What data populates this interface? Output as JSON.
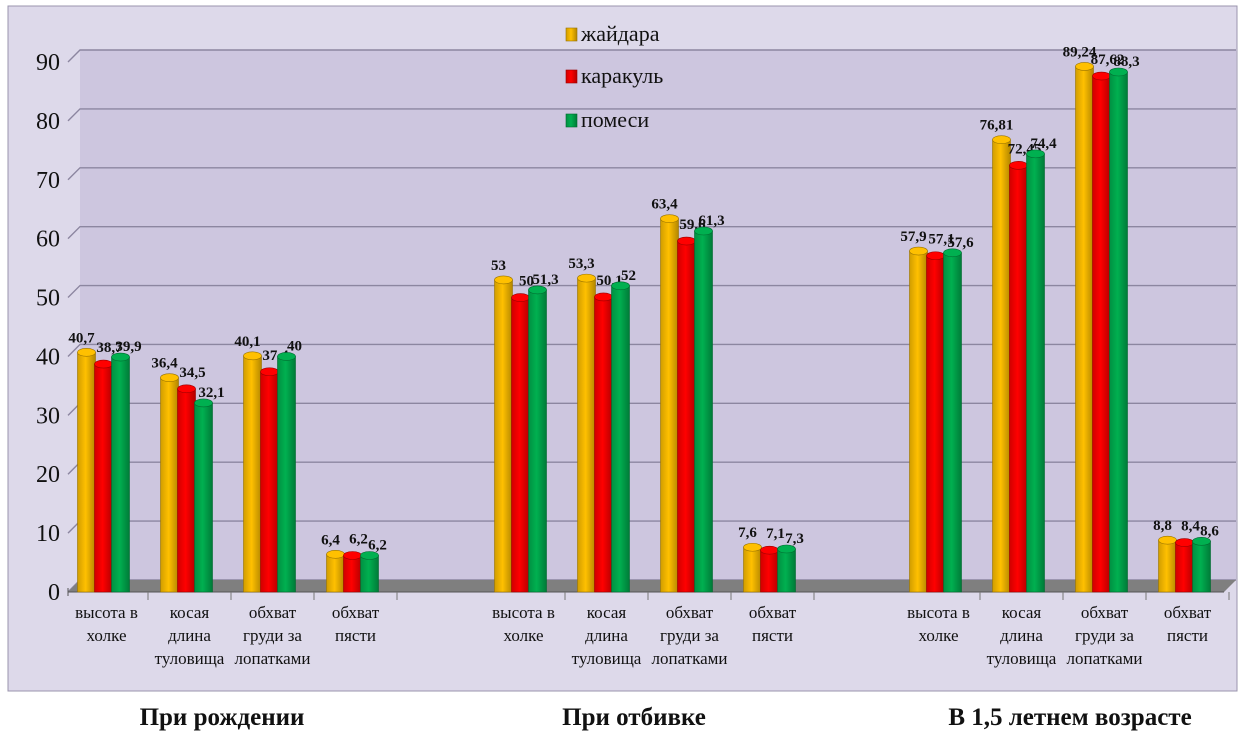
{
  "chart_data": {
    "type": "bar",
    "ylim": [
      0,
      90
    ],
    "yticks": [
      0,
      10,
      20,
      30,
      40,
      50,
      60,
      70,
      80,
      90
    ],
    "grid": true,
    "legend_position": "top-center",
    "series": [
      {
        "name": "жайдара",
        "color": "#ffc000"
      },
      {
        "name": "каракуль",
        "color": "#ff0000"
      },
      {
        "name": "помеси",
        "color": "#00b050"
      }
    ],
    "groups": [
      {
        "title": "При рождении",
        "categories": [
          {
            "label": [
              "высота в",
              "холке"
            ],
            "values": [
              40.7,
              38.7,
              39.9
            ],
            "value_labels": [
              "40,7",
              "38,7",
              "39,9"
            ]
          },
          {
            "label": [
              "косая",
              "длина",
              "туловища"
            ],
            "values": [
              36.4,
              34.5,
              32.1
            ],
            "value_labels": [
              "36,4",
              "34,5",
              "32,1"
            ]
          },
          {
            "label": [
              "обхват",
              "груди за",
              "лопатками"
            ],
            "values": [
              40.1,
              37.4,
              40
            ],
            "value_labels": [
              "40,1",
              "37,4",
              "40"
            ]
          },
          {
            "label": [
              "обхват",
              "пясти"
            ],
            "values": [
              6.4,
              6.2,
              6.2
            ],
            "value_labels": [
              "6,4",
              "6,2",
              "6,2"
            ]
          }
        ]
      },
      {
        "title": "При отбивке",
        "categories": [
          {
            "label": [
              "высота в",
              "холке"
            ],
            "values": [
              53,
              50,
              51.3
            ],
            "value_labels": [
              "53",
              "50",
              "51,3"
            ]
          },
          {
            "label": [
              "косая",
              "длина",
              "туловища"
            ],
            "values": [
              53.3,
              50.1,
              52
            ],
            "value_labels": [
              "53,3",
              "50,1",
              "52"
            ]
          },
          {
            "label": [
              "обхват",
              "груди за",
              "лопатками"
            ],
            "values": [
              63.4,
              59.6,
              61.3
            ],
            "value_labels": [
              "63,4",
              "59,6",
              "61,3"
            ]
          },
          {
            "label": [
              "обхват",
              "пясти"
            ],
            "values": [
              7.6,
              7.1,
              7.3
            ],
            "value_labels": [
              "7,6",
              "7,1",
              "7,3"
            ]
          }
        ]
      },
      {
        "title": "В 1,5 летнем возрасте",
        "categories": [
          {
            "label": [
              "высота в",
              "холке"
            ],
            "values": [
              57.9,
              57.1,
              57.6
            ],
            "value_labels": [
              "57,9",
              "57,1",
              "57,6"
            ]
          },
          {
            "label": [
              "косая",
              "длина",
              "туловища"
            ],
            "values": [
              76.81,
              72.45,
              74.4
            ],
            "value_labels": [
              "76,81",
              "72,45",
              "74,4"
            ]
          },
          {
            "label": [
              "обхват",
              "груди за",
              "лопатками"
            ],
            "values": [
              89.24,
              87.62,
              88.3
            ],
            "value_labels": [
              "89,24",
              "87,62",
              "88,3"
            ]
          },
          {
            "label": [
              "обхват",
              "пясти"
            ],
            "values": [
              8.8,
              8.4,
              8.6
            ],
            "value_labels": [
              "8,8",
              "8,4",
              "8,6"
            ]
          }
        ]
      }
    ]
  }
}
